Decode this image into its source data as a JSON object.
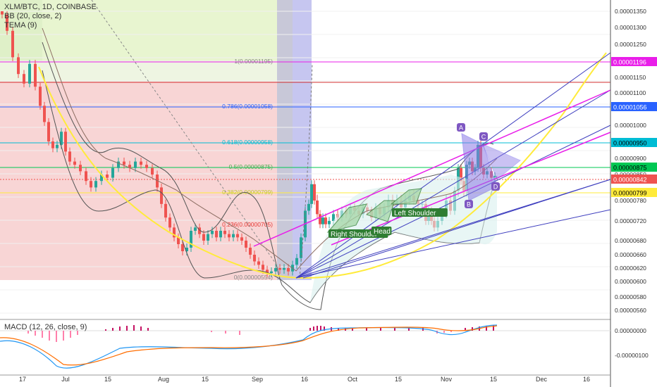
{
  "header": {
    "symbol": "XLM/BTC, 1D, COINBASE",
    "bb": "BB (20, close, 2)",
    "tema": "TEMA (9)",
    "macd": "MACD (12, 26, close, 9)"
  },
  "chart_data": {
    "type": "candlestick",
    "y_axis": {
      "min": 4.4e-06,
      "max": 1.37e-05,
      "ticks": [
        "0.00001350",
        "0.00001300",
        "0.00001250",
        "0.00001200",
        "0.00001150",
        "0.00001100",
        "0.00001050",
        "0.00001000",
        "0.00000950",
        "0.00000900",
        "0.00000850",
        "0.00000800",
        "0.00000780",
        "0.00000720",
        "0.00000680",
        "0.00000660",
        "0.00000620",
        "0.00000600",
        "0.00000580",
        "0.00000560",
        "0.00000540",
        "0.00000500",
        "0.00000460"
      ]
    },
    "x_axis": {
      "ticks": [
        "17",
        "Jul",
        "15",
        "Aug",
        "15",
        "Sep",
        "16",
        "Oct",
        "15",
        "Nov",
        "15",
        "Dec",
        "16"
      ]
    },
    "macd_axis": {
      "ticks": [
        "0.00000000",
        "-0.00000100"
      ]
    },
    "price_labels": [
      {
        "text": "0.00001196",
        "color": "#e91ee9"
      },
      {
        "text": "0.00001056",
        "color": "#2962ff"
      },
      {
        "text": "0.00000950",
        "color": "#00bcd4"
      },
      {
        "text": "0.00000875",
        "color": "#00c853"
      },
      {
        "text": "0.00000842",
        "color": "#ef5350"
      },
      {
        "text": "0.00000799",
        "color": "#ffeb3b"
      }
    ],
    "fib_levels": [
      {
        "label": "1(0.00001195)",
        "color": "#888888"
      },
      {
        "label": "0.786(0.00001058)",
        "color": "#2962ff"
      },
      {
        "label": "0.618(0.00000958)",
        "color": "#00bcd4"
      },
      {
        "label": "0.5(0.00000875)",
        "color": "#4caf50"
      },
      {
        "label": "0.382(0.00000799)",
        "color": "#c0ca33"
      },
      {
        "label": "0.236(0.00000705)",
        "color": "#e53935"
      },
      {
        "label": "0(0.00000554)",
        "color": "#888888"
      }
    ],
    "annotations": [
      "Right Shoulder",
      "Head",
      "Left Shoulder",
      "A",
      "C",
      "D"
    ],
    "colors": {
      "up": "#26a69a",
      "down": "#ef5350",
      "trend": "#ffeb3b",
      "fan": "#3f3fbf",
      "channel": "#e91ee9"
    }
  }
}
